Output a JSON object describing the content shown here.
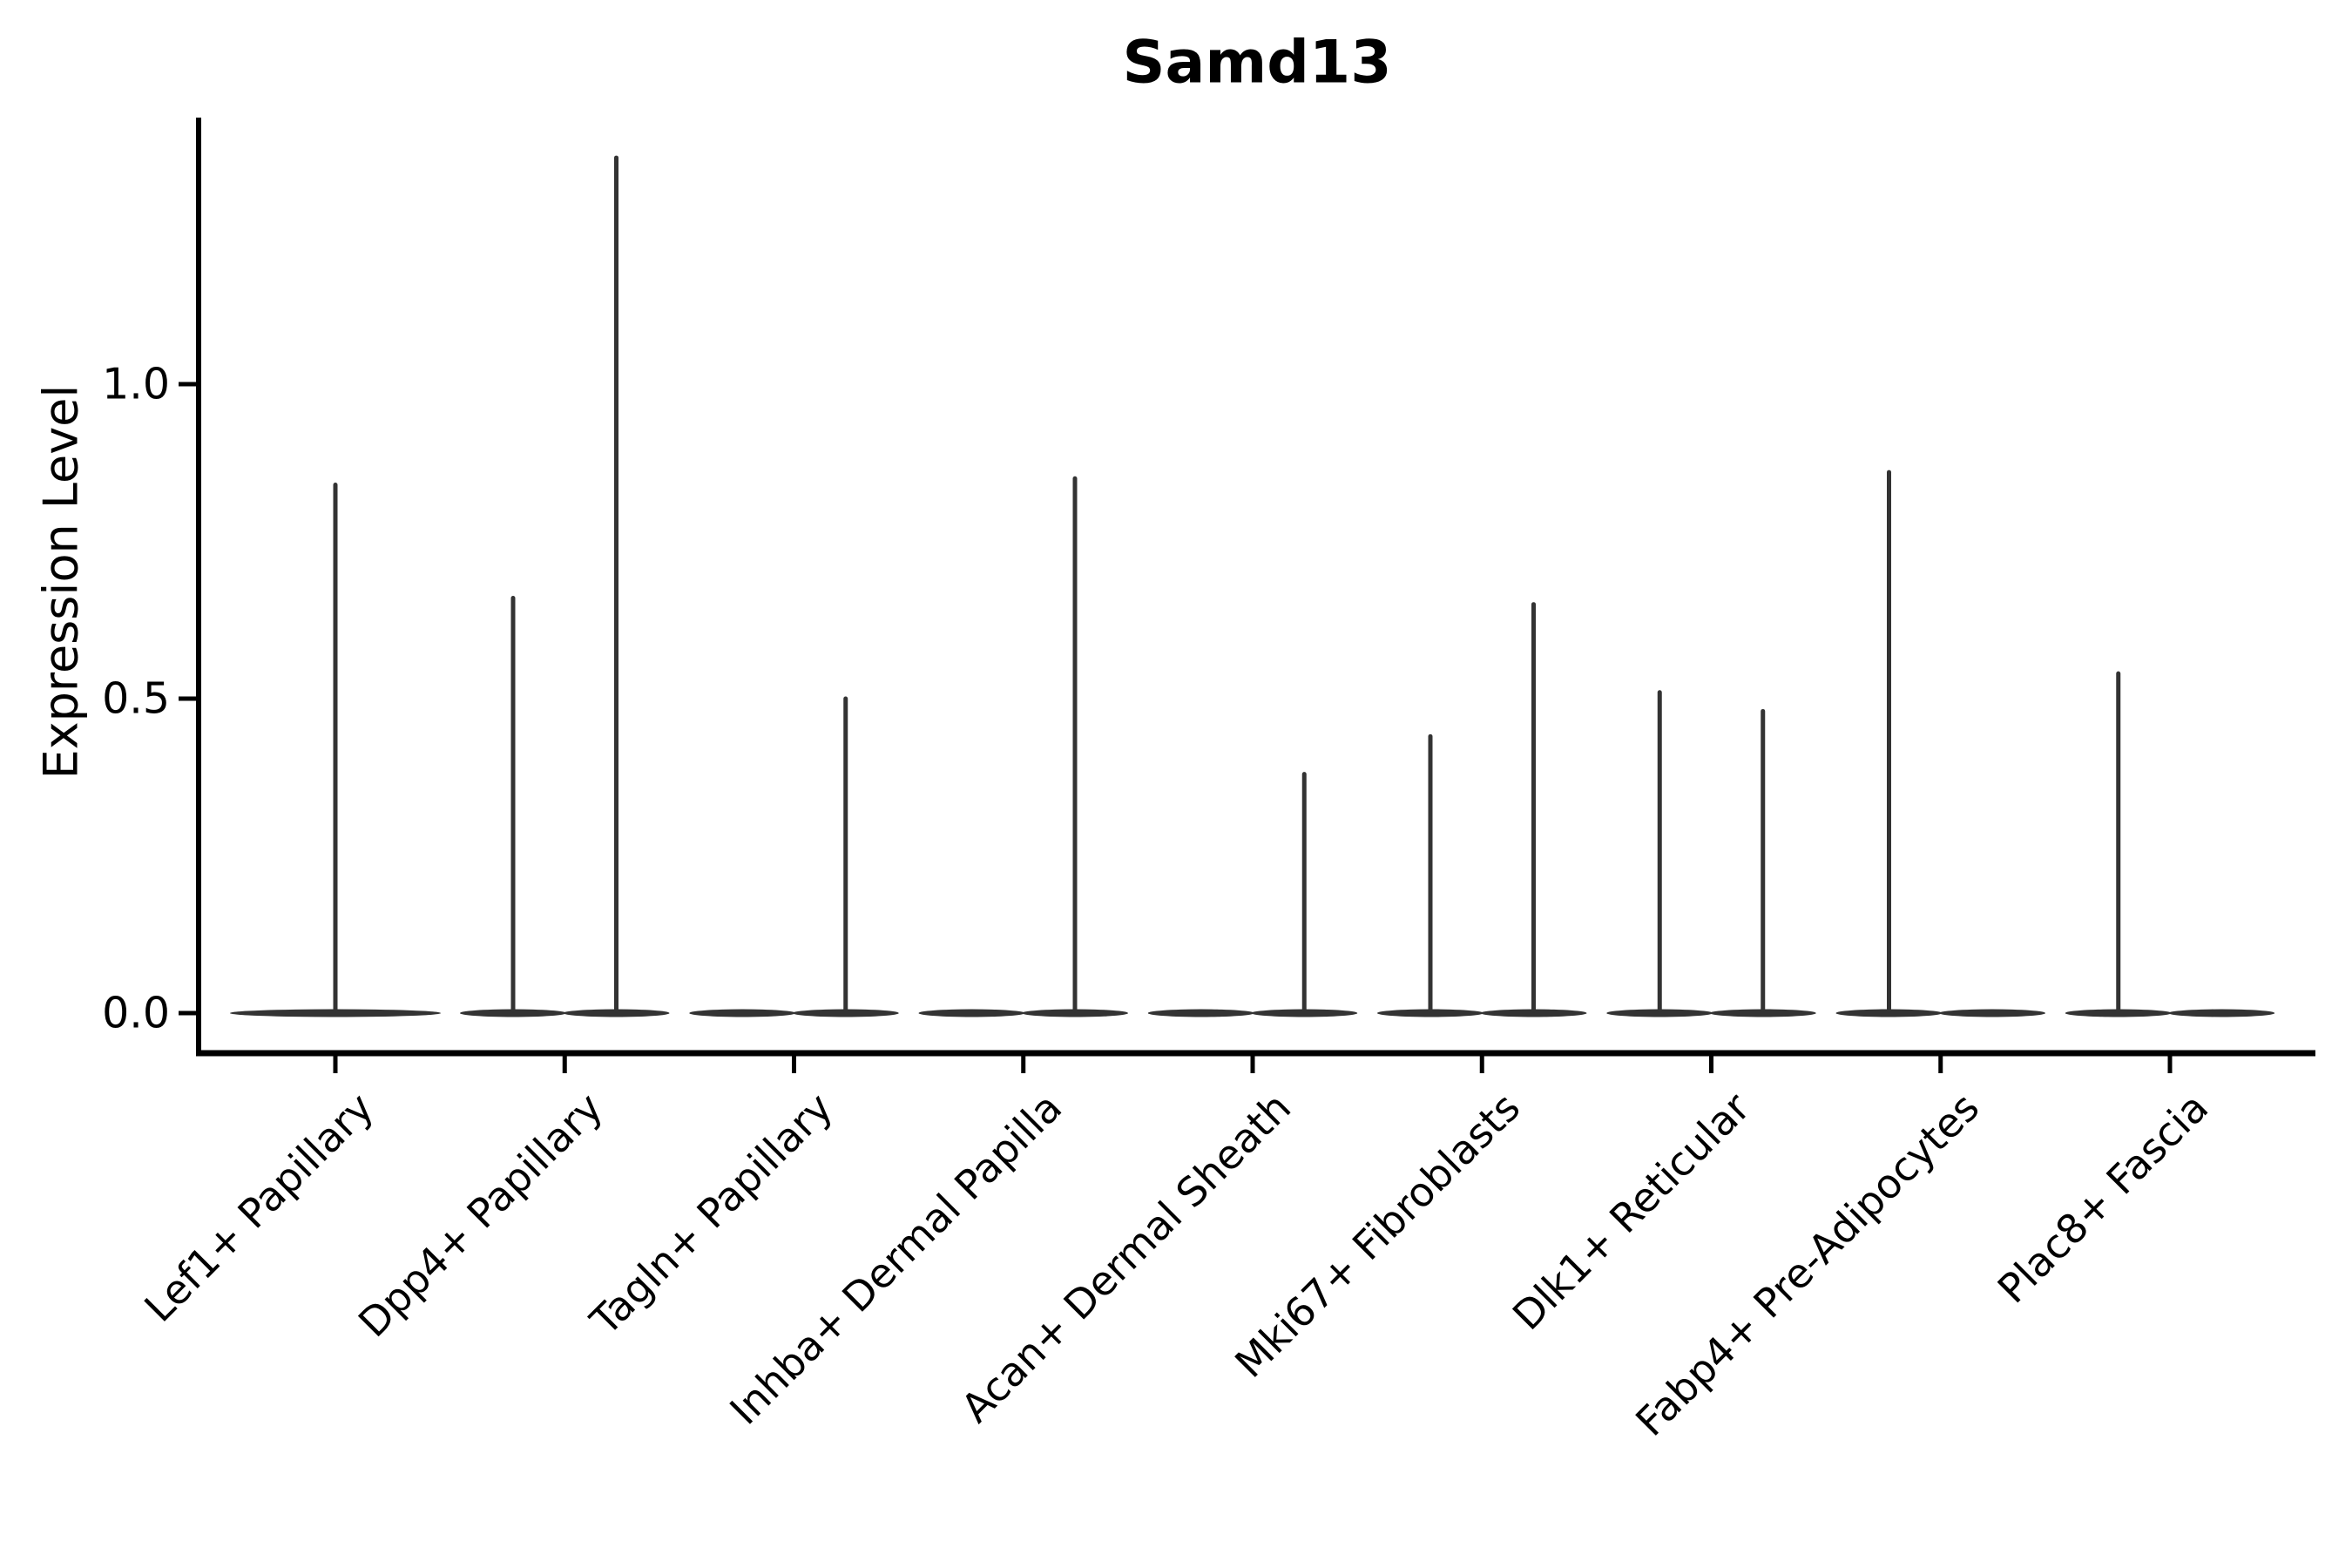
{
  "chart_data": {
    "type": "violin",
    "title": "Samd13",
    "xlabel": "",
    "ylabel": "Expression Level",
    "ylim": [
      -0.06,
      1.42
    ],
    "grid": false,
    "legend": "none",
    "yticks": [
      {
        "label": "0.0",
        "value": 0.0
      },
      {
        "label": "0.5",
        "value": 0.5
      },
      {
        "label": "1.0",
        "value": 1.0
      }
    ],
    "categories": [
      "Lef1+ Papillary",
      "Dpp4+ Papillary",
      "Tagln+ Papillary",
      "Inhba+ Dermal Papilla",
      "Acan+ Dermal Sheath",
      "Mki67+ Fibroblasts",
      "Dlk1+ Reticular",
      "Fabp4+ Pre-Adipocytes",
      "Plac8+ Fascia"
    ],
    "violins": [
      {
        "category": "Lef1+ Papillary",
        "groups": [
          {
            "pos": 0,
            "max_expression": 0.84
          }
        ]
      },
      {
        "category": "Dpp4+ Papillary",
        "groups": [
          {
            "pos": -1,
            "max_expression": 0.66
          },
          {
            "pos": 1,
            "max_expression": 1.36
          }
        ]
      },
      {
        "category": "Tagln+ Papillary",
        "groups": [
          {
            "pos": -1,
            "max_expression": 0.0
          },
          {
            "pos": 1,
            "max_expression": 0.5
          }
        ]
      },
      {
        "category": "Inhba+ Dermal Papilla",
        "groups": [
          {
            "pos": -1,
            "max_expression": 0.0
          },
          {
            "pos": 1,
            "max_expression": 0.85
          }
        ]
      },
      {
        "category": "Acan+ Dermal Sheath",
        "groups": [
          {
            "pos": -1,
            "max_expression": 0.0
          },
          {
            "pos": 1,
            "max_expression": 0.38
          }
        ]
      },
      {
        "category": "Mki67+ Fibroblasts",
        "groups": [
          {
            "pos": -1,
            "max_expression": 0.44
          },
          {
            "pos": 1,
            "max_expression": 0.65
          }
        ]
      },
      {
        "category": "Dlk1+ Reticular",
        "groups": [
          {
            "pos": -1,
            "max_expression": 0.51
          },
          {
            "pos": 1,
            "max_expression": 0.48
          }
        ]
      },
      {
        "category": "Fabp4+ Pre-Adipocytes",
        "groups": [
          {
            "pos": -1,
            "max_expression": 0.86
          },
          {
            "pos": 1,
            "max_expression": 0.0
          }
        ]
      },
      {
        "category": "Plac8+ Fascia",
        "groups": [
          {
            "pos": -1,
            "max_expression": 0.54
          },
          {
            "pos": 1,
            "max_expression": 0.0
          }
        ]
      }
    ],
    "violin_color": "#333333",
    "axis_color": "#000000",
    "background_color": "#ffffff"
  }
}
